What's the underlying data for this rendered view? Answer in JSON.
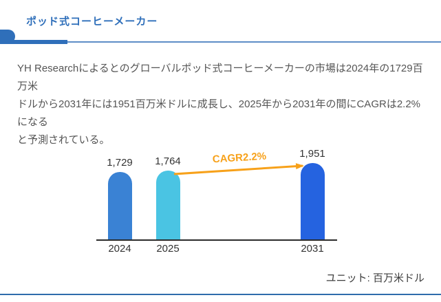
{
  "header": {
    "title": "ポッド式コーヒーメーカー",
    "accent_color": "#2f6fba",
    "thin_line_color": "#5d8dc6"
  },
  "paragraph": {
    "lines": [
      "YH Researchによるとのグローバルポッド式コーヒーメーカーの市場は2024年の1729百万米",
      "ドルから2031年には1951百万米ドルに成長し、2025年から2031年の間にCAGRは2.2%になる",
      "と予測されている。"
    ]
  },
  "chart_data": {
    "type": "bar",
    "title": "",
    "categories": [
      "2024",
      "2025",
      "2031"
    ],
    "values": [
      1729,
      1764,
      1951
    ],
    "value_labels": [
      "1,729",
      "1,764",
      "1,951"
    ],
    "bar_colors": [
      "#3a82d4",
      "#4ac4e3",
      "#2563e0"
    ],
    "ylim": [
      0,
      1951
    ],
    "xlabel": "",
    "ylabel": "",
    "grid": "off",
    "axis_color": "#2b2b2b",
    "label_color": "#333333",
    "annotation": {
      "text": "CAGR2.2%",
      "color": "#f7a11a",
      "from_category": "2025",
      "to_category": "2031"
    },
    "unit_label": "ユニット: 百万米ドル"
  },
  "footer": {
    "line_color": "#2e6cab"
  }
}
